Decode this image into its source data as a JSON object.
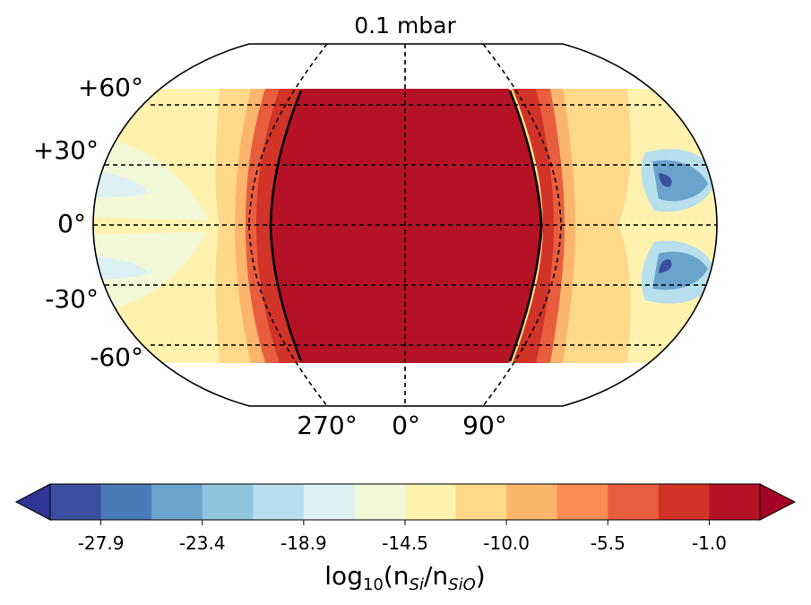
{
  "chart_data": {
    "type": "contour-map",
    "title": "0.1 mbar",
    "projection": "Robinson (equal-area style global map)",
    "latitude_ticks": [
      "+60°",
      "+30°",
      "0°",
      "-30°",
      "-60°"
    ],
    "longitude_ticks": [
      "270°",
      "0°",
      "90°"
    ],
    "latitude_range": [
      -70,
      70
    ],
    "colorbar": {
      "label_prefix": "log",
      "label_sub": "10",
      "label_expr": "(n",
      "label_sub_num": "Si",
      "label_mid": "/n",
      "label_sub_den": "SiO",
      "label_suffix": ")",
      "extend": "both",
      "tick_labels": [
        "-27.9",
        "-23.4",
        "-18.9",
        "-14.5",
        "-10.0",
        "-5.5",
        "-1.0"
      ],
      "colors": [
        "#3a4fa0",
        "#4a7ab7",
        "#6aa3cb",
        "#91c4dd",
        "#b7dfec",
        "#ddf0f4",
        "#f0f8d8",
        "#fff2ae",
        "#fed98a",
        "#fcb56c",
        "#f88d55",
        "#e85d3e",
        "#d13328",
        "#b51226"
      ],
      "extend_low_color": "#313695",
      "extend_high_color": "#a50026"
    },
    "regions": {
      "dayside_color": "#b51226",
      "terminator_color": "#000000"
    }
  }
}
